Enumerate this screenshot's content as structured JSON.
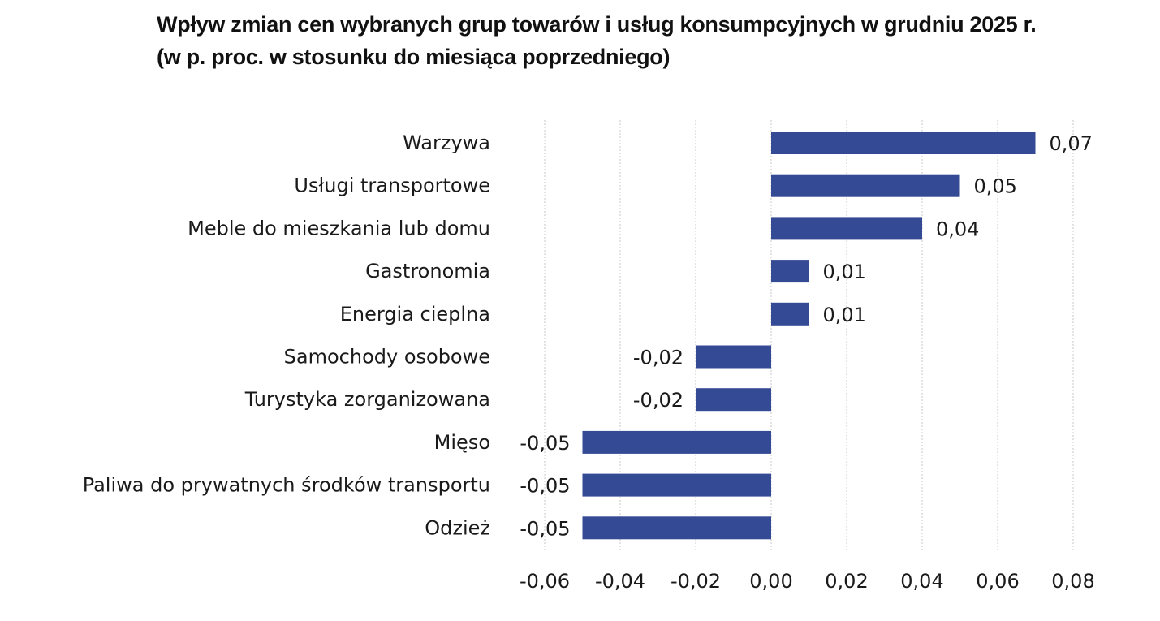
{
  "chart_data": {
    "type": "bar",
    "orientation": "horizontal",
    "title": "Wpływ zmian cen wybranych grup towarów i usług konsumpcyjnych w grudniu 2025 r.",
    "subtitle": "(w  p. proc. w stosunku do miesiąca poprzedniego)",
    "categories": [
      "Warzywa",
      "Usługi transportowe",
      "Meble do mieszkania lub domu",
      "Gastronomia",
      "Energia cieplna",
      "Samochody osobowe",
      "Turystyka zorganizowana",
      "Mięso",
      "Paliwa do prywatnych środków transportu",
      "Odzież"
    ],
    "values": [
      0.07,
      0.05,
      0.04,
      0.01,
      0.01,
      -0.02,
      -0.02,
      -0.05,
      -0.05,
      -0.05
    ],
    "value_labels": [
      "0,07",
      "0,05",
      "0,04",
      "0,01",
      "0,01",
      "-0,02",
      "-0,02",
      "-0,05",
      "-0,05",
      "-0,05"
    ],
    "xlim": [
      -0.06,
      0.08
    ],
    "x_ticks": [
      -0.06,
      -0.04,
      -0.02,
      0.0,
      0.02,
      0.04,
      0.06,
      0.08
    ],
    "x_tick_labels": [
      "-0,06",
      "-0,04",
      "-0,02",
      "0,00",
      "0,02",
      "0,04",
      "0,06",
      "0,08"
    ],
    "xlabel": "",
    "ylabel": "",
    "grid": "vertical dotted",
    "bar_color": "#354a94"
  }
}
